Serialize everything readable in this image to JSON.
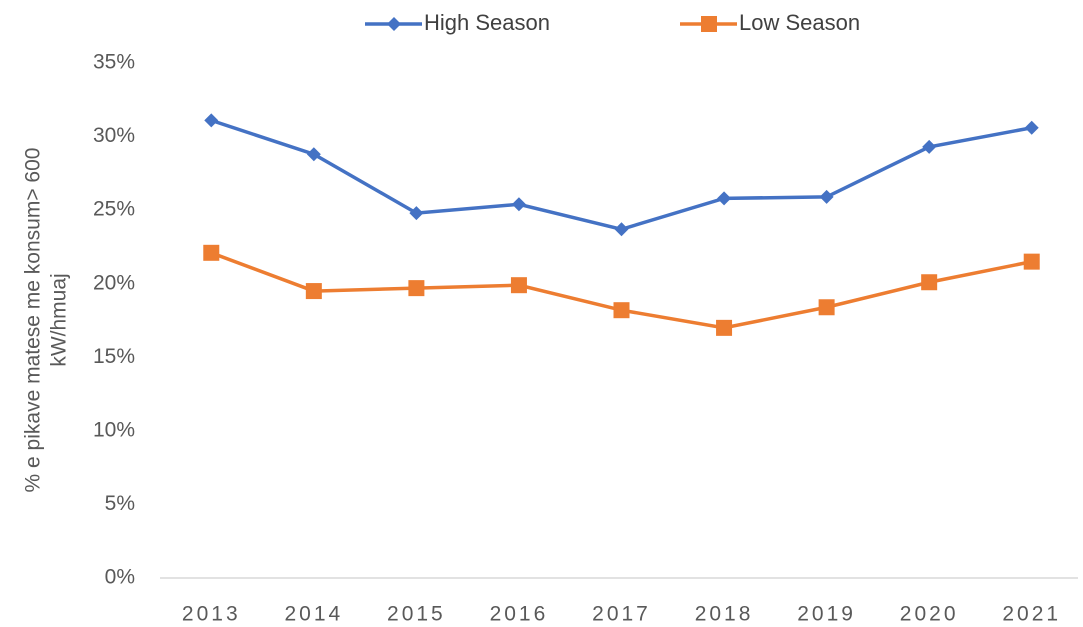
{
  "chart_data": {
    "type": "line",
    "y_label": [
      "% e pikave matese me konsum> 600",
      "kW/hmuaj"
    ],
    "categories": [
      "2013",
      "2014",
      "2015",
      "2016",
      "2017",
      "2018",
      "2019",
      "2020",
      "2021"
    ],
    "series": [
      {
        "name": "High Season",
        "color": "#4472c4",
        "marker": "diamond",
        "values": [
          31.1,
          28.8,
          24.8,
          25.4,
          23.7,
          25.8,
          25.9,
          29.3,
          30.6
        ]
      },
      {
        "name": "Low Season",
        "color": "#ed7d31",
        "marker": "square",
        "values": [
          22.1,
          19.5,
          19.7,
          19.9,
          18.2,
          17.0,
          18.4,
          20.1,
          21.5
        ]
      }
    ],
    "ylim": [
      0,
      35
    ],
    "yticks": [
      {
        "value": 0,
        "label": "0%"
      },
      {
        "value": 5,
        "label": "5%"
      },
      {
        "value": 10,
        "label": "10%"
      },
      {
        "value": 15,
        "label": "15%"
      },
      {
        "value": 20,
        "label": "20%"
      },
      {
        "value": 25,
        "label": "25%"
      },
      {
        "value": 30,
        "label": "30%"
      },
      {
        "value": 35,
        "label": "35%"
      }
    ],
    "grid": false,
    "legend": "top"
  }
}
